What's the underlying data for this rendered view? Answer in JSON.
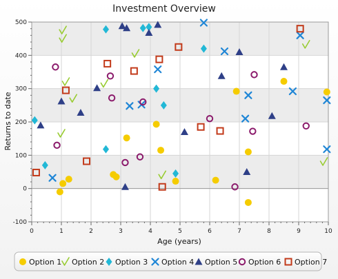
{
  "chart_data": {
    "type": "scatter",
    "title": "Investment Overview",
    "xlabel": "Age (years)",
    "ylabel": "Returns to date",
    "xlim": [
      0,
      10
    ],
    "ylim": [
      -100,
      500
    ],
    "xticks": [
      0,
      1,
      2,
      3,
      4,
      5,
      6,
      7,
      8,
      9,
      10
    ],
    "yticks": [
      -100,
      0,
      100,
      200,
      300,
      400,
      500
    ],
    "grid": true,
    "legend_position": "bottom",
    "series": [
      {
        "name": "Option 1",
        "marker": "circle",
        "color": "#f5cc00",
        "points": [
          [
            0.95,
            -10
          ],
          [
            1.05,
            15
          ],
          [
            1.25,
            28
          ],
          [
            2.75,
            42
          ],
          [
            2.85,
            35
          ],
          [
            3.2,
            152
          ],
          [
            4.2,
            193
          ],
          [
            4.35,
            115
          ],
          [
            4.85,
            22
          ],
          [
            6.2,
            25
          ],
          [
            6.9,
            292
          ],
          [
            7.3,
            110
          ],
          [
            7.3,
            -42
          ],
          [
            8.5,
            322
          ],
          [
            9.95,
            290
          ]
        ]
      },
      {
        "name": "Option 2",
        "marker": "check",
        "color": "#99cc33",
        "points": [
          [
            1.05,
            475
          ],
          [
            1.05,
            450
          ],
          [
            1.15,
            320
          ],
          [
            1.4,
            270
          ],
          [
            1.0,
            165
          ],
          [
            2.45,
            315
          ],
          [
            3.5,
            405
          ],
          [
            4.4,
            40
          ],
          [
            9.25,
            432
          ],
          [
            9.85,
            80
          ]
        ]
      },
      {
        "name": "Option 3",
        "marker": "diamond",
        "color": "#22b8d6",
        "points": [
          [
            0.1,
            205
          ],
          [
            0.45,
            70
          ],
          [
            2.5,
            478
          ],
          [
            2.5,
            118
          ],
          [
            3.75,
            482
          ],
          [
            3.95,
            485
          ],
          [
            4.2,
            300
          ],
          [
            4.45,
            250
          ],
          [
            4.85,
            45
          ],
          [
            5.8,
            420
          ]
        ]
      },
      {
        "name": "Option 4",
        "marker": "x",
        "color": "#1f86d6",
        "points": [
          [
            0.7,
            32
          ],
          [
            3.3,
            248
          ],
          [
            3.7,
            252
          ],
          [
            4.25,
            358
          ],
          [
            5.8,
            498
          ],
          [
            6.5,
            412
          ],
          [
            7.2,
            210
          ],
          [
            7.3,
            280
          ],
          [
            8.8,
            292
          ],
          [
            9.05,
            460
          ],
          [
            9.95,
            265
          ],
          [
            9.95,
            118
          ]
        ]
      },
      {
        "name": "Option 5",
        "marker": "triangle",
        "color": "#2e3f87",
        "points": [
          [
            0.3,
            190
          ],
          [
            1.0,
            262
          ],
          [
            1.65,
            228
          ],
          [
            2.2,
            302
          ],
          [
            3.05,
            488
          ],
          [
            3.2,
            482
          ],
          [
            3.95,
            468
          ],
          [
            4.25,
            492
          ],
          [
            5.15,
            170
          ],
          [
            6.4,
            338
          ],
          [
            7.0,
            410
          ],
          [
            7.25,
            50
          ],
          [
            8.1,
            218
          ],
          [
            8.5,
            365
          ],
          [
            3.15,
            5
          ]
        ]
      },
      {
        "name": "Option 6",
        "marker": "ring",
        "color": "#8b1a6b",
        "points": [
          [
            0.8,
            365
          ],
          [
            0.85,
            130
          ],
          [
            2.65,
            338
          ],
          [
            2.7,
            272
          ],
          [
            3.15,
            78
          ],
          [
            3.65,
            95
          ],
          [
            3.75,
            260
          ],
          [
            6.0,
            210
          ],
          [
            6.85,
            5
          ],
          [
            7.45,
            172
          ],
          [
            7.5,
            342
          ],
          [
            9.25,
            188
          ]
        ]
      },
      {
        "name": "Option 7",
        "marker": "square",
        "color": "#c23a1a",
        "points": [
          [
            0.15,
            48
          ],
          [
            1.15,
            295
          ],
          [
            1.85,
            82
          ],
          [
            2.55,
            375
          ],
          [
            3.45,
            353
          ],
          [
            4.3,
            388
          ],
          [
            4.4,
            5
          ],
          [
            4.95,
            425
          ],
          [
            5.7,
            185
          ],
          [
            6.35,
            173
          ],
          [
            9.05,
            480
          ]
        ]
      }
    ]
  }
}
